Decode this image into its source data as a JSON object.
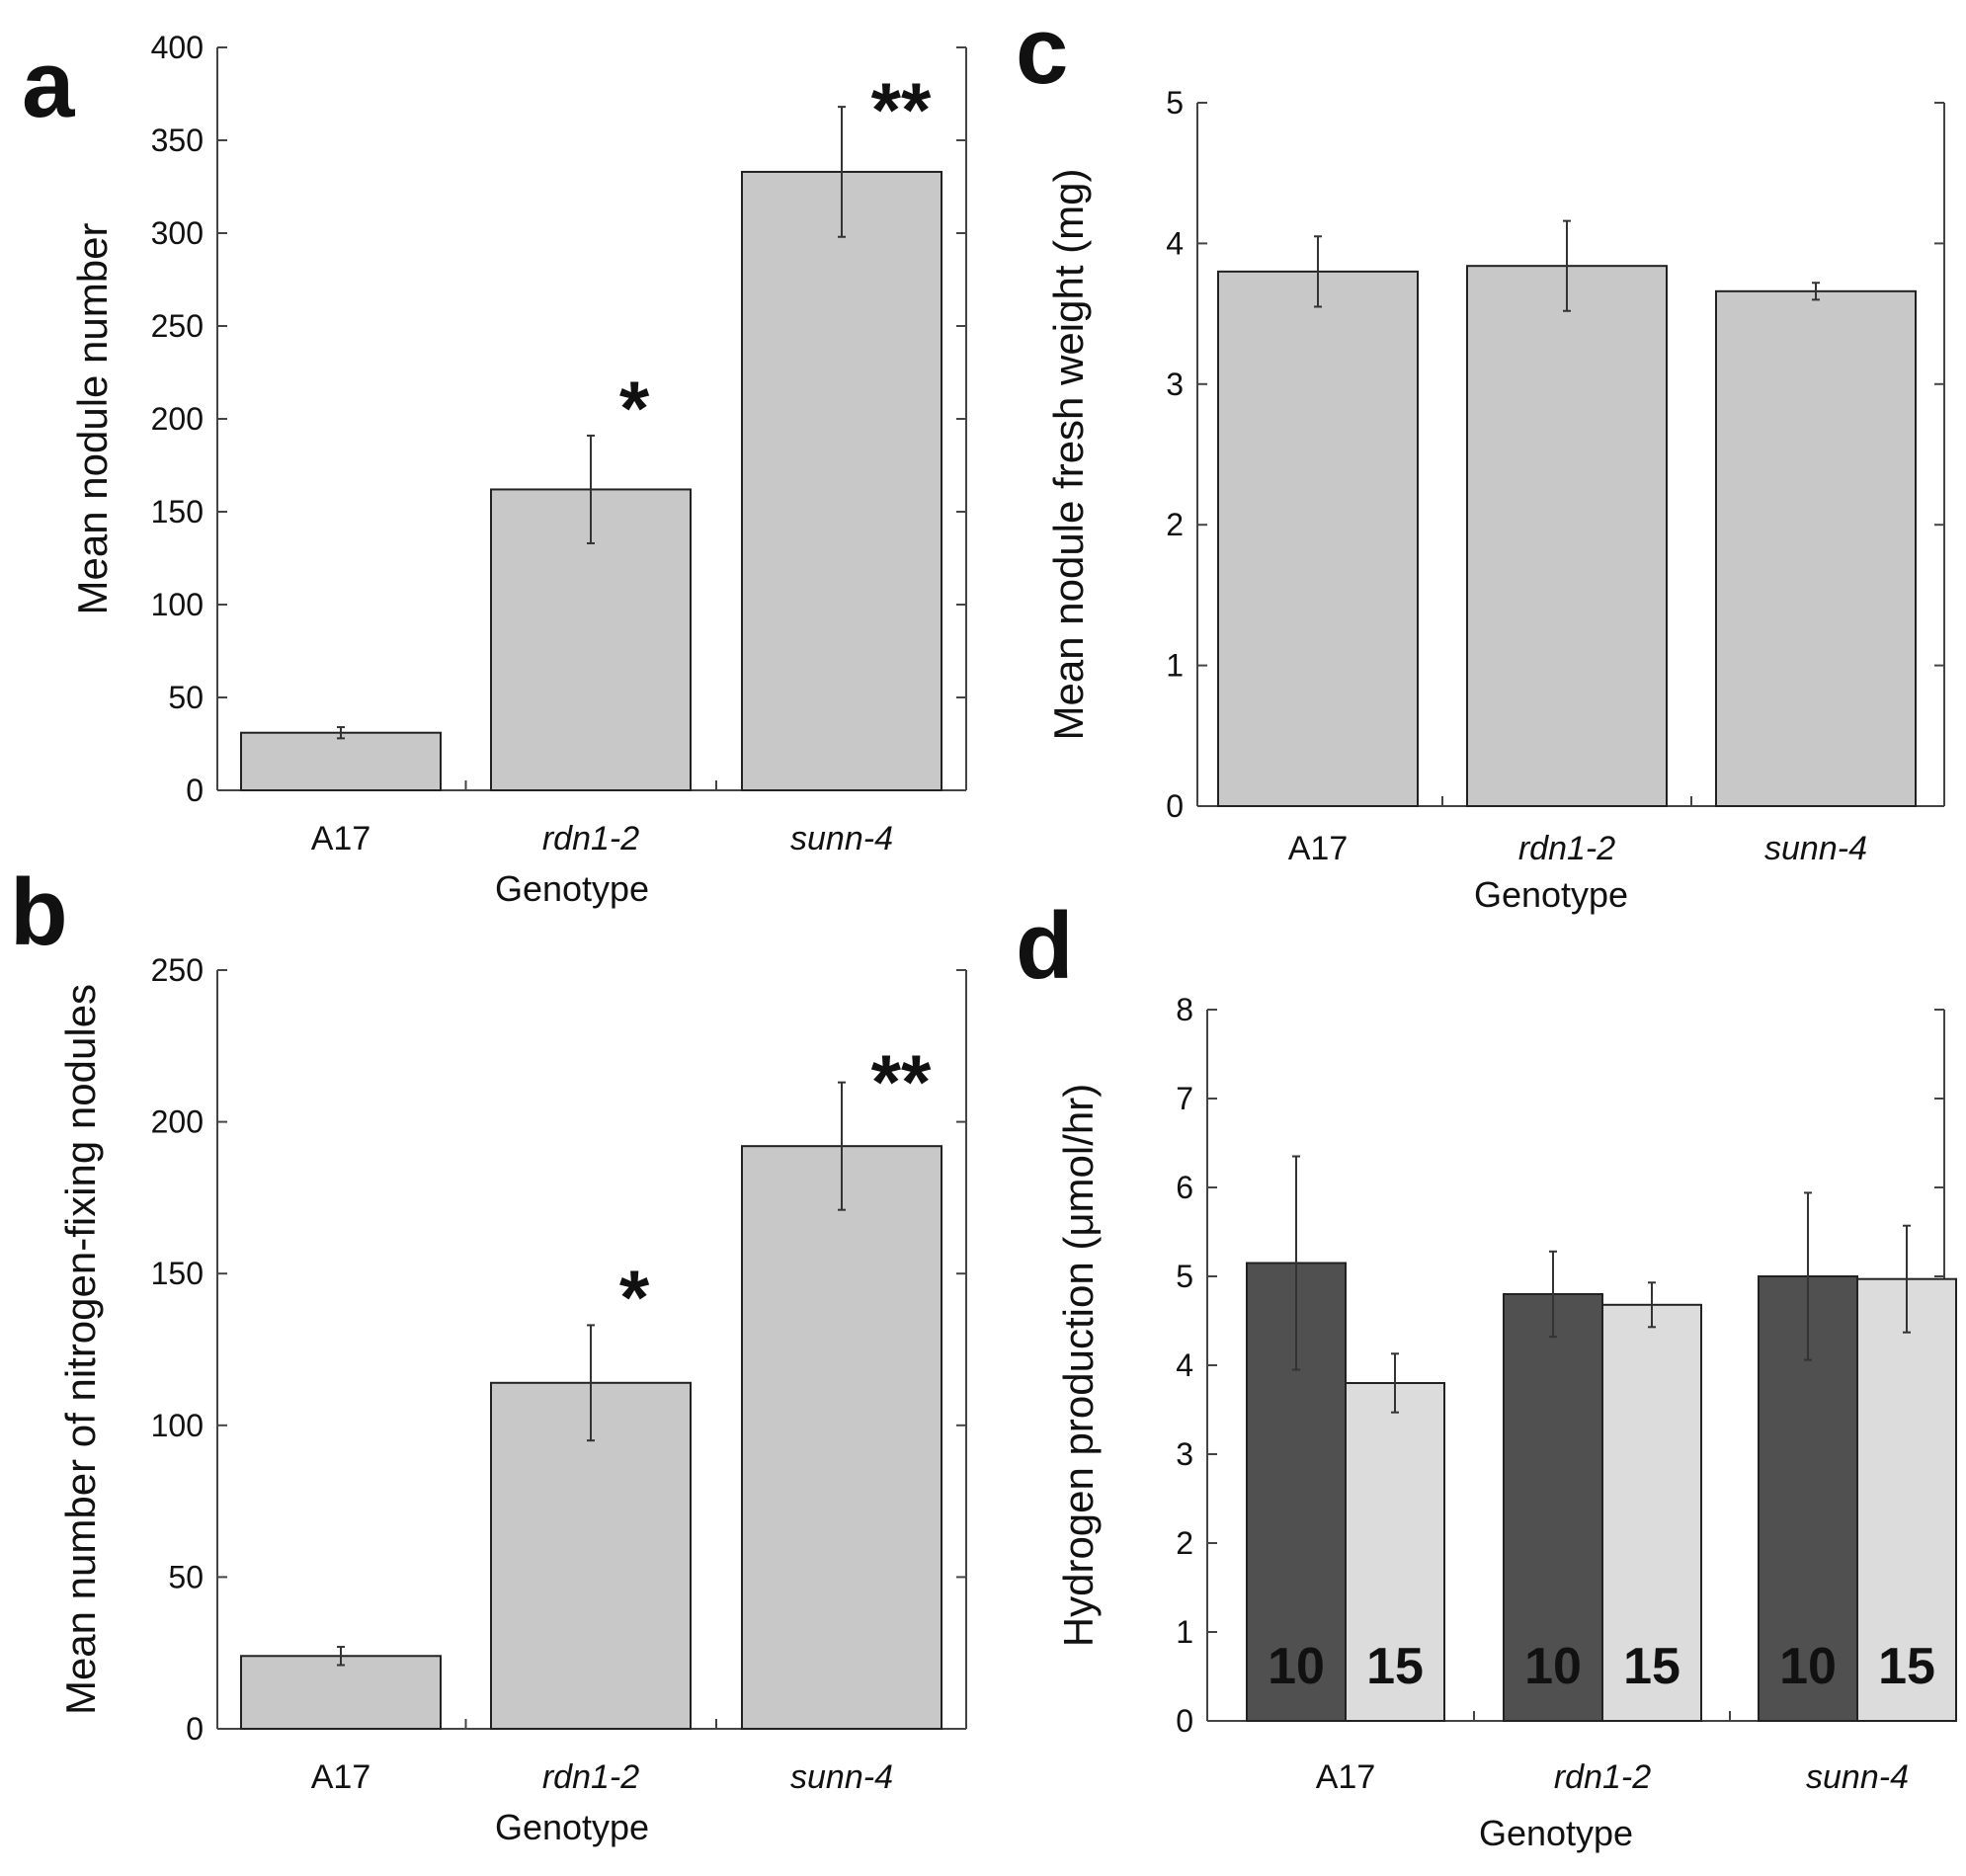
{
  "chart_data": [
    {
      "panel": "a",
      "type": "bar",
      "categories": [
        "A17",
        "rdn1-2",
        "sunn-4"
      ],
      "italic_categories": [
        false,
        true,
        true
      ],
      "values": [
        31,
        162,
        333
      ],
      "errors": [
        3,
        29,
        35
      ],
      "annotations": [
        "",
        "*",
        "**"
      ],
      "xlabel": "Genotype",
      "ylabel": "Mean nodule number",
      "ylim": [
        0,
        400
      ],
      "yticks": [
        0,
        50,
        100,
        150,
        200,
        250,
        300,
        350,
        400
      ],
      "bar_color": "#c8c8c8"
    },
    {
      "panel": "b",
      "type": "bar",
      "categories": [
        "A17",
        "rdn1-2",
        "sunn-4"
      ],
      "italic_categories": [
        false,
        true,
        true
      ],
      "values": [
        24,
        114,
        192
      ],
      "errors": [
        3,
        19,
        21
      ],
      "annotations": [
        "",
        "*",
        "**"
      ],
      "xlabel": "Genotype",
      "ylabel": "Mean number of nitrogen-fixing nodules",
      "ylim": [
        0,
        250
      ],
      "yticks": [
        0,
        50,
        100,
        150,
        200,
        250
      ],
      "bar_color": "#c8c8c8"
    },
    {
      "panel": "c",
      "type": "bar",
      "categories": [
        "A17",
        "rdn1-2",
        "sunn-4"
      ],
      "italic_categories": [
        false,
        true,
        true
      ],
      "values": [
        3.8,
        3.84,
        3.66
      ],
      "errors": [
        0.25,
        0.32,
        0.06
      ],
      "annotations": [
        "",
        "",
        ""
      ],
      "xlabel": "Genotype",
      "ylabel": "Mean nodule fresh weight (mg)",
      "ylim": [
        0,
        5
      ],
      "yticks": [
        0,
        1,
        2,
        3,
        4,
        5
      ],
      "bar_color": "#c8c8c8"
    },
    {
      "panel": "d",
      "type": "bar",
      "categories": [
        "A17",
        "rdn1-2",
        "sunn-4"
      ],
      "italic_categories": [
        false,
        true,
        true
      ],
      "series": [
        {
          "bar_text": "10",
          "values": [
            5.15,
            4.8,
            5.0
          ],
          "errors": [
            1.2,
            0.48,
            0.94
          ],
          "color": "#505050",
          "text_color": "#111111"
        },
        {
          "bar_text": "15",
          "values": [
            3.8,
            4.68,
            4.97
          ],
          "errors": [
            0.33,
            0.25,
            0.6
          ],
          "color": "#dcdcdc",
          "text_color": "#111111"
        }
      ],
      "xlabel": "Genotype",
      "ylabel": "Hydrogen production (μmol/hr)",
      "ylim": [
        0,
        8
      ],
      "yticks": [
        0,
        1,
        2,
        3,
        4,
        5,
        6,
        7,
        8
      ]
    }
  ]
}
